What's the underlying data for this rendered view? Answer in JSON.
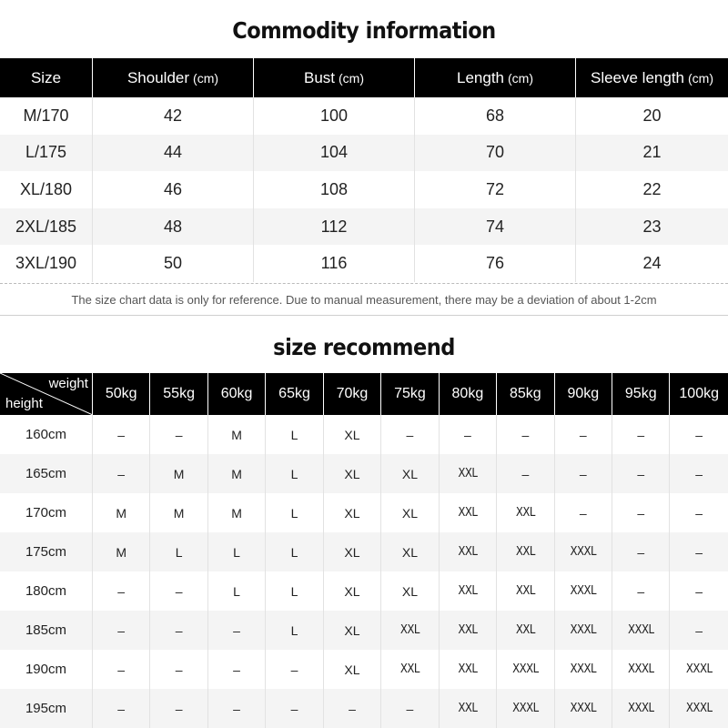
{
  "commodity": {
    "title": "Commodity information",
    "columns": [
      {
        "label": "Size",
        "unit": ""
      },
      {
        "label": "Shoulder",
        "unit": "(cm)"
      },
      {
        "label": "Bust",
        "unit": "(cm)"
      },
      {
        "label": "Length",
        "unit": "(cm)"
      },
      {
        "label": "Sleeve length",
        "unit": "(cm)"
      }
    ],
    "rows": [
      [
        "M/170",
        "42",
        "100",
        "68",
        "20"
      ],
      [
        "L/175",
        "44",
        "104",
        "70",
        "21"
      ],
      [
        "XL/180",
        "46",
        "108",
        "72",
        "22"
      ],
      [
        "2XL/185",
        "48",
        "112",
        "74",
        "23"
      ],
      [
        "3XL/190",
        "50",
        "116",
        "76",
        "24"
      ]
    ],
    "note": "The size chart data is only for reference. Due to manual measurement, there may be a deviation of about 1-2cm"
  },
  "recommend": {
    "title": "size recommend",
    "corner_weight": "weight",
    "corner_height": "height",
    "weights": [
      "50kg",
      "55kg",
      "60kg",
      "65kg",
      "70kg",
      "75kg",
      "80kg",
      "85kg",
      "90kg",
      "95kg",
      "100kg"
    ],
    "rows": [
      {
        "height": "160cm",
        "sizes": [
          "–",
          "–",
          "M",
          "L",
          "XL",
          "–",
          "–",
          "–",
          "–",
          "–",
          "–"
        ]
      },
      {
        "height": "165cm",
        "sizes": [
          "–",
          "M",
          "M",
          "L",
          "XL",
          "XL",
          "XXL",
          "–",
          "–",
          "–",
          "–"
        ]
      },
      {
        "height": "170cm",
        "sizes": [
          "M",
          "M",
          "M",
          "L",
          "XL",
          "XL",
          "XXL",
          "XXL",
          "–",
          "–",
          "–"
        ]
      },
      {
        "height": "175cm",
        "sizes": [
          "M",
          "L",
          "L",
          "L",
          "XL",
          "XL",
          "XXL",
          "XXL",
          "XXXL",
          "–",
          "–"
        ]
      },
      {
        "height": "180cm",
        "sizes": [
          "–",
          "–",
          "L",
          "L",
          "XL",
          "XL",
          "XXL",
          "XXL",
          "XXXL",
          "–",
          "–"
        ]
      },
      {
        "height": "185cm",
        "sizes": [
          "–",
          "–",
          "–",
          "L",
          "XL",
          "XXL",
          "XXL",
          "XXL",
          "XXXL",
          "XXXL",
          "–"
        ]
      },
      {
        "height": "190cm",
        "sizes": [
          "–",
          "–",
          "–",
          "–",
          "XL",
          "XXL",
          "XXL",
          "XXXL",
          "XXXL",
          "XXXL",
          "XXXL"
        ]
      },
      {
        "height": "195cm",
        "sizes": [
          "–",
          "–",
          "–",
          "–",
          "–",
          "–",
          "XXL",
          "XXXL",
          "XXXL",
          "XXXL",
          "XXXL"
        ]
      }
    ]
  }
}
